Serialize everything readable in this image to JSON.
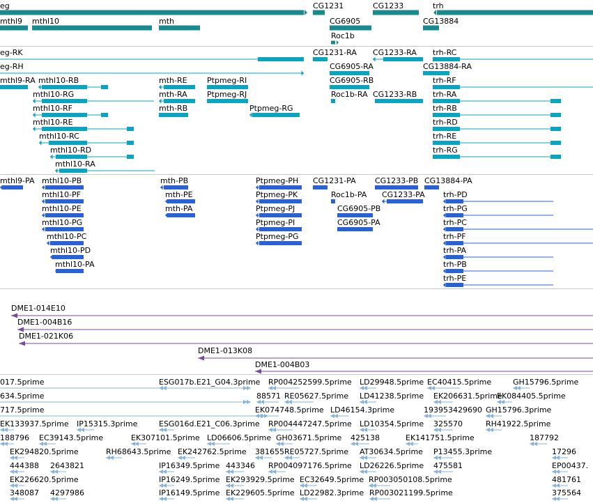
{
  "colors": {
    "gene": "#1a8a91",
    "transcript": "#0aa3c0",
    "protein": "#2a62d6",
    "clone": "#7a4aa0",
    "est": "#86b4dc",
    "separator": "#c8c8c8"
  },
  "tracks": {
    "genes": {
      "labels": [
        "eg",
        "CG1231",
        "CG1233",
        "trh",
        "mthl9",
        "mthl10",
        "mth",
        "CG6905",
        "CG13884",
        "Roc1b"
      ]
    },
    "transcripts": {
      "labels": [
        "eg-RK",
        "CG1231-RA",
        "CG1233-RA",
        "trh-RC",
        "eg-RH",
        "CG6905-RA",
        "CG13884-RA",
        "mthl9-RA",
        "mthl10-RB",
        "mth-RE",
        "Ptpmeg-RI",
        "CG6905-RB",
        "trh-RF",
        "mthl10-RG",
        "mth-RA",
        "Ptpmeg-RJ",
        "Roc1b-RA",
        "CG1233-RB",
        "trh-RA",
        "mthl10-RF",
        "mth-RB",
        "Ptpmeg-RG",
        "trh-RB",
        "mthl10-RE",
        "trh-RD",
        "mthl10-RC",
        "trh-RE",
        "mthl10-RD",
        "trh-RG",
        "mthl10-RA"
      ]
    },
    "proteins": {
      "labels": [
        "mthl9-PA",
        "mthl10-PB",
        "mth-PB",
        "Ptpmeg-PH",
        "CG1231-PA",
        "CG1233-PB",
        "CG13884-PA",
        "mthl10-PF",
        "mth-PE",
        "Ptpmeg-PK",
        "Roc1b-PA",
        "CG1233-PA",
        "trh-PD",
        "mthl10-PE",
        "mth-PA",
        "Ptpmeg-PJ",
        "CG6905-PB",
        "trh-PG",
        "mthl10-PG",
        "Ptpmeg-PI",
        "CG6905-PA",
        "trh-PC",
        "mthl10-PC",
        "Ptpmeg-PG",
        "trh-PF",
        "mthl10-PD",
        "trh-PA",
        "mthl10-PA",
        "trh-PB",
        "trh-PE"
      ]
    },
    "clones": {
      "labels": [
        "DME1-014E10",
        "DME1-004B16",
        "DME1-021K06",
        "DME1-013K08",
        "DME1-004B03"
      ]
    },
    "ests": {
      "labels": [
        "017.5prime",
        "ESG017b.E21_G04.3prime",
        "RP004252599.5prime",
        "LD29948.5prime",
        "EC40415.5prime",
        "GH15796.5prime",
        "634.5prime",
        "88571",
        "RE05627.5prime",
        "LD41238.5prime",
        "EK206631.5prime",
        "EK084405.5prime",
        "717.5prime",
        "EK074748.5prime",
        "LD46154.3prime",
        "193953429690",
        "GH15796.3prime",
        "EK133937.5prime",
        "IP15315.3prime",
        "ESG016d.E21_C06.3prime",
        "RP004447247.5prime",
        "LD10354.5prime",
        "325570",
        "RH41922.5prime",
        "188796",
        "EC39143.5prime",
        "EK307101.5prime",
        "LD06606.5prime",
        "GH03671.5prime",
        "425138",
        "EK141751.5prime",
        "187792",
        "EK294820.5prime",
        "RH68643.5prime",
        "EK242762.5prime",
        "381655",
        "RE05727.5prime",
        "AT30634.5prime",
        "P13455.3prime",
        "17296",
        "444388",
        "2643821",
        "IP16349.5prime",
        "443346",
        "RP004097176.5prime",
        "LD26226.5prime",
        "475581",
        "EP00437.",
        "EK226620.5prime",
        "IP16249.5prime",
        "EK293929.5prime",
        "EC32649.5prime",
        "RP003050108.5prime",
        "481761",
        "348087",
        "4297986",
        "IP16149.5prime",
        "EK229605.5prime",
        "LD22982.3prime",
        "RP003021199.5prime",
        "375564"
      ]
    }
  }
}
